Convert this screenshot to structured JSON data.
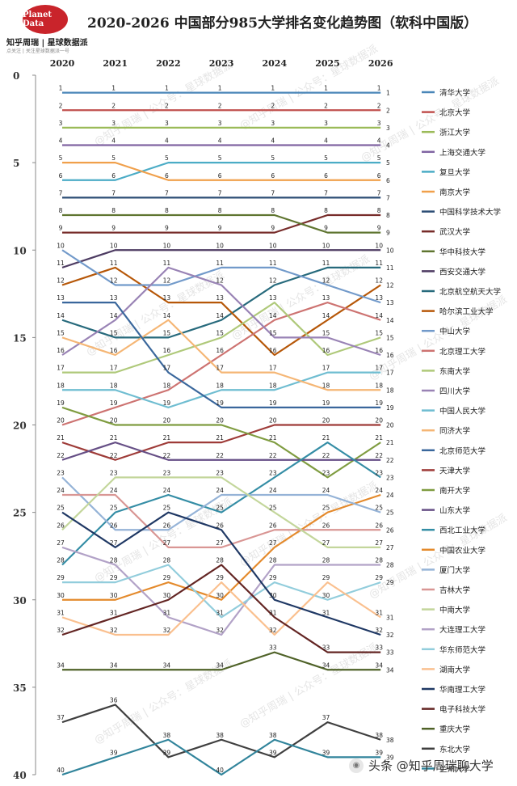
{
  "title": "2020-2026 中国部分985大学排名变化趋势图（软科中国版）",
  "logo": {
    "name": "Planet Data",
    "subtitle": "知乎周瑞 | 星球数据派",
    "tagline": "点关注 | 关注星球数据派一号"
  },
  "watermark": "@知乎周瑞 | 公众号：星球数据派",
  "footer_credit": "头条 @知乎周瑞聊大学",
  "chart_data": {
    "type": "line",
    "title": "2020-2026 中国部分985大学排名变化趋势图（软科中国版）",
    "x": [
      "2020",
      "2021",
      "2022",
      "2023",
      "2024",
      "2025",
      "2026"
    ],
    "y_ticks": [
      0,
      5,
      10,
      15,
      20,
      25,
      30,
      35,
      40
    ],
    "ylim": [
      0,
      40
    ],
    "y_inverted": true,
    "grid": false,
    "legend_position": "right",
    "series": [
      {
        "name": "清华大学",
        "color": "#4a86b8",
        "values": [
          1,
          1,
          1,
          1,
          1,
          1,
          1
        ]
      },
      {
        "name": "北京大学",
        "color": "#c0504d",
        "values": [
          2,
          2,
          2,
          2,
          2,
          2,
          2
        ]
      },
      {
        "name": "浙江大学",
        "color": "#9bbb59",
        "values": [
          3,
          3,
          3,
          3,
          3,
          3,
          3
        ]
      },
      {
        "name": "上海交通大学",
        "color": "#8064a2",
        "values": [
          4,
          4,
          4,
          4,
          4,
          4,
          4
        ]
      },
      {
        "name": "复旦大学",
        "color": "#4bacc6",
        "values": [
          6,
          6,
          5,
          5,
          5,
          5,
          5
        ]
      },
      {
        "name": "南京大学",
        "color": "#f0a04b",
        "values": [
          5,
          5,
          6,
          6,
          6,
          6,
          6
        ]
      },
      {
        "name": "中国科学技术大学",
        "color": "#2c4d75",
        "values": [
          7,
          7,
          7,
          7,
          7,
          7,
          7
        ]
      },
      {
        "name": "武汉大学",
        "color": "#772c2a",
        "values": [
          9,
          9,
          9,
          9,
          9,
          8,
          8
        ]
      },
      {
        "name": "华中科技大学",
        "color": "#5f7530",
        "values": [
          8,
          8,
          8,
          8,
          8,
          9,
          9
        ]
      },
      {
        "name": "西安交通大学",
        "color": "#4d3b62",
        "values": [
          11,
          10,
          10,
          10,
          10,
          10,
          10
        ]
      },
      {
        "name": "北京航空航天大学",
        "color": "#276a7c",
        "values": [
          14,
          15,
          15,
          14,
          12,
          11,
          11
        ]
      },
      {
        "name": "哈尔滨工业大学",
        "color": "#b65708",
        "values": [
          12,
          11,
          13,
          13,
          16,
          14,
          12
        ]
      },
      {
        "name": "中山大学",
        "color": "#729aca",
        "values": [
          10,
          12,
          12,
          11,
          11,
          12,
          13
        ]
      },
      {
        "name": "北京理工大学",
        "color": "#cd7371",
        "values": [
          20,
          19,
          18,
          16,
          14,
          13,
          14
        ]
      },
      {
        "name": "东南大学",
        "color": "#afc97a",
        "values": [
          17,
          17,
          16,
          15,
          13,
          16,
          15
        ]
      },
      {
        "name": "四川大学",
        "color": "#9983b5",
        "values": [
          16,
          14,
          11,
          12,
          15,
          15,
          16
        ]
      },
      {
        "name": "中国人民大学",
        "color": "#6fbdd1",
        "values": [
          18,
          18,
          19,
          18,
          18,
          17,
          17
        ]
      },
      {
        "name": "同济大学",
        "color": "#f5b675",
        "values": [
          15,
          16,
          14,
          17,
          17,
          18,
          18
        ]
      },
      {
        "name": "北京师范大学",
        "color": "#3a679c",
        "values": [
          13,
          13,
          17,
          19,
          19,
          19,
          19
        ]
      },
      {
        "name": "天津大学",
        "color": "#9e3b38",
        "values": [
          21,
          22,
          21,
          21,
          20,
          20,
          20
        ]
      },
      {
        "name": "南开大学",
        "color": "#7f9c40",
        "values": [
          19,
          20,
          20,
          20,
          21,
          23,
          21
        ]
      },
      {
        "name": "山东大学",
        "color": "#664f86",
        "values": [
          22,
          21,
          22,
          22,
          22,
          22,
          22
        ]
      },
      {
        "name": "西北工业大学",
        "color": "#348da5",
        "values": [
          28,
          25,
          24,
          25,
          23,
          21,
          23
        ]
      },
      {
        "name": "中国农业大学",
        "color": "#e48a2c",
        "values": [
          30,
          30,
          29,
          30,
          27,
          25,
          24
        ]
      },
      {
        "name": "厦门大学",
        "color": "#95b3d7",
        "values": [
          23,
          26,
          26,
          24,
          24,
          24,
          25
        ]
      },
      {
        "name": "吉林大学",
        "color": "#d99694",
        "values": [
          24,
          24,
          27,
          27,
          26,
          26,
          26
        ]
      },
      {
        "name": "中南大学",
        "color": "#c3d69b",
        "values": [
          26,
          23,
          23,
          23,
          25,
          27,
          27
        ]
      },
      {
        "name": "大连理工大学",
        "color": "#b2a2c7",
        "values": [
          27,
          28,
          31,
          32,
          28,
          28,
          28
        ]
      },
      {
        "name": "华东师范大学",
        "color": "#92cddc",
        "values": [
          29,
          29,
          28,
          31,
          29,
          30,
          29
        ]
      },
      {
        "name": "湖南大学",
        "color": "#fac08f",
        "values": [
          31,
          32,
          32,
          29,
          32,
          29,
          31
        ]
      },
      {
        "name": "华南理工大学",
        "color": "#1f3864",
        "values": [
          25,
          27,
          25,
          26,
          30,
          31,
          32
        ]
      },
      {
        "name": "电子科技大学",
        "color": "#632523",
        "values": [
          32,
          31,
          30,
          28,
          31,
          33,
          33
        ]
      },
      {
        "name": "重庆大学",
        "color": "#4f6228",
        "values": [
          34,
          34,
          34,
          34,
          33,
          34,
          34
        ]
      },
      {
        "name": "东北大学",
        "color": "#3f3f3f",
        "values": [
          37,
          36,
          39,
          38,
          39,
          37,
          38
        ]
      },
      {
        "name": "兰州大学",
        "color": "#31849b",
        "values": [
          40,
          39,
          38,
          40,
          38,
          39,
          39
        ]
      }
    ]
  }
}
